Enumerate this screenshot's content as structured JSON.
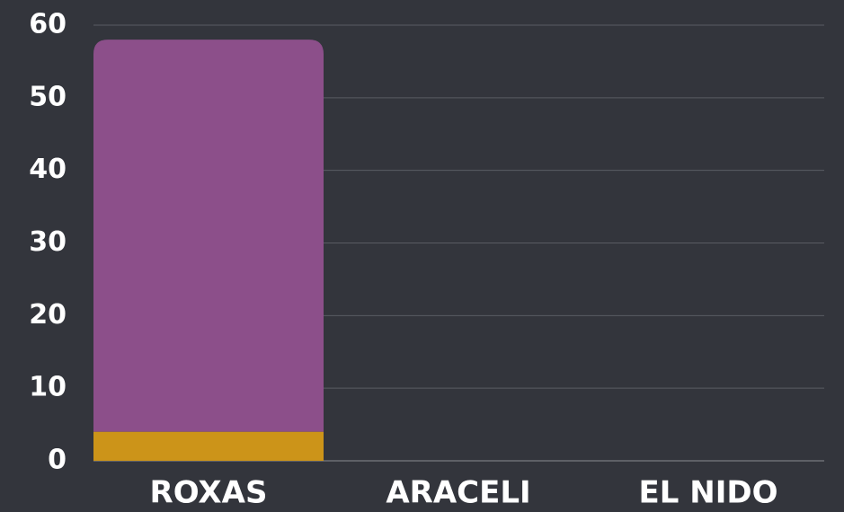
{
  "chart_data": {
    "type": "stacked_bar",
    "categories": [
      "ROXAS",
      "ARACELI",
      "EL NIDO"
    ],
    "series": [
      {
        "color": "#cc9419",
        "values": [
          4,
          0,
          0
        ]
      },
      {
        "color": "#8c4f8a",
        "values": [
          54,
          0,
          0
        ]
      }
    ],
    "ylim": [
      0,
      60
    ],
    "yticks": [
      0,
      10,
      20,
      30,
      40,
      50,
      60
    ],
    "grid": true
  }
}
